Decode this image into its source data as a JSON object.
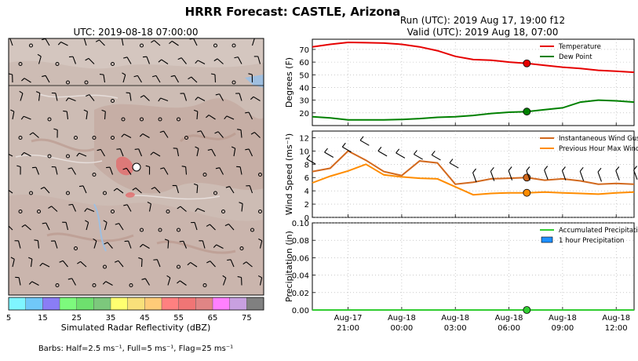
{
  "title": "HRRR Forecast: CASTLE, Arizona",
  "map": {
    "title": "UTC: 2019-08-18 07:00:00",
    "colorbar": {
      "label": "Simulated Radar Reflectivity (dBZ)",
      "ticks": [
        "5",
        "15",
        "25",
        "35",
        "45",
        "55",
        "65",
        "75"
      ],
      "colors": [
        "#7ff5ff",
        "#70c8f8",
        "#8a7df5",
        "#7dfa7d",
        "#6ee06e",
        "#7cc87c",
        "#ffff70",
        "#f8e07a",
        "#ffcb78",
        "#ff8080",
        "#f07575",
        "#e08585",
        "#ff80ff",
        "#c8a0e0",
        "#808080"
      ]
    },
    "barbs_note": "Barbs: Half=2.5 ms⁻¹, Full=5 ms⁻¹, Flag=25 ms⁻¹"
  },
  "run_text": "Run (UTC): 2019 Aug 17, 19:00 f12",
  "valid_text": "Valid (UTC): 2019 Aug 18, 07:00",
  "chart_data": [
    {
      "type": "line",
      "x": [
        "2019-08-17 19:00",
        "2019-08-17 20:00",
        "2019-08-17 21:00",
        "2019-08-17 22:00",
        "2019-08-17 23:00",
        "2019-08-18 00:00",
        "2019-08-18 01:00",
        "2019-08-18 02:00",
        "2019-08-18 03:00",
        "2019-08-18 04:00",
        "2019-08-18 05:00",
        "2019-08-18 06:00",
        "2019-08-18 07:00",
        "2019-08-18 08:00",
        "2019-08-18 09:00",
        "2019-08-18 10:00",
        "2019-08-18 11:00",
        "2019-08-18 12:00",
        "2019-08-18 13:00"
      ],
      "ylabel": "Degrees (F)",
      "ylim": [
        10,
        78
      ],
      "yticks": [
        "20",
        "30",
        "40",
        "50",
        "60",
        "70"
      ],
      "grid": true,
      "legend": "top-right",
      "series": [
        {
          "name": "Temperature",
          "color": "#e60000",
          "values": [
            72,
            74,
            75.5,
            75.3,
            75,
            74,
            72,
            69,
            64.5,
            62,
            61.5,
            60,
            59,
            57.5,
            56,
            55,
            53.5,
            52.8,
            52
          ]
        },
        {
          "name": "Dew Point",
          "color": "#008000",
          "values": [
            17,
            16,
            14.5,
            14.5,
            14.5,
            14.8,
            15.5,
            16.5,
            17,
            18,
            19.5,
            20.5,
            21,
            22.5,
            24,
            28.5,
            30,
            29.5,
            28.5
          ]
        }
      ],
      "marker_index": 12
    },
    {
      "type": "line",
      "x": [
        "2019-08-17 19:00",
        "2019-08-17 20:00",
        "2019-08-17 21:00",
        "2019-08-17 22:00",
        "2019-08-17 23:00",
        "2019-08-18 00:00",
        "2019-08-18 01:00",
        "2019-08-18 02:00",
        "2019-08-18 03:00",
        "2019-08-18 04:00",
        "2019-08-18 05:00",
        "2019-08-18 06:00",
        "2019-08-18 07:00",
        "2019-08-18 08:00",
        "2019-08-18 09:00",
        "2019-08-18 10:00",
        "2019-08-18 11:00",
        "2019-08-18 12:00",
        "2019-08-18 13:00"
      ],
      "ylabel": "Wind Speed (ms⁻¹)",
      "ylim": [
        0,
        13
      ],
      "yticks": [
        "0",
        "2",
        "4",
        "6",
        "8",
        "10",
        "12"
      ],
      "grid": true,
      "legend": "top-right",
      "series": [
        {
          "name": "Instantaneous Wind Gust",
          "color": "#d2691e",
          "values": [
            6.9,
            7.4,
            10,
            8.6,
            6.9,
            6.3,
            8.5,
            8.2,
            5,
            5.3,
            5.8,
            5.9,
            6,
            5.6,
            5.8,
            5.5,
            5,
            5.1,
            5
          ]
        },
        {
          "name": "Previous Hour Max Wind",
          "color": "#ff8c00",
          "values": [
            5.2,
            6.2,
            7,
            8,
            6.4,
            6.1,
            5.9,
            5.8,
            4.6,
            3.4,
            3.6,
            3.7,
            3.7,
            3.8,
            3.7,
            3.6,
            3.5,
            3.7,
            3.8
          ]
        }
      ],
      "marker_index": 12
    },
    {
      "type": "line",
      "x": [
        "2019-08-17 19:00",
        "2019-08-17 20:00",
        "2019-08-17 21:00",
        "2019-08-17 22:00",
        "2019-08-17 23:00",
        "2019-08-18 00:00",
        "2019-08-18 01:00",
        "2019-08-18 02:00",
        "2019-08-18 03:00",
        "2019-08-18 04:00",
        "2019-08-18 05:00",
        "2019-08-18 06:00",
        "2019-08-18 07:00",
        "2019-08-18 08:00",
        "2019-08-18 09:00",
        "2019-08-18 10:00",
        "2019-08-18 11:00",
        "2019-08-18 12:00",
        "2019-08-18 13:00"
      ],
      "ylabel": "Precipitation (in)",
      "ylim": [
        0,
        0.1
      ],
      "yticks": [
        "0.00",
        "0.02",
        "0.04",
        "0.06",
        "0.08",
        "0.10"
      ],
      "xticks": [
        {
          "x": "2019-08-17 21:00",
          "day": "Aug-17",
          "time": "21:00"
        },
        {
          "x": "2019-08-18 00:00",
          "day": "Aug-18",
          "time": "00:00"
        },
        {
          "x": "2019-08-18 03:00",
          "day": "Aug-18",
          "time": "03:00"
        },
        {
          "x": "2019-08-18 06:00",
          "day": "Aug-18",
          "time": "06:00"
        },
        {
          "x": "2019-08-18 09:00",
          "day": "Aug-18",
          "time": "09:00"
        },
        {
          "x": "2019-08-18 12:00",
          "day": "Aug-18",
          "time": "12:00"
        }
      ],
      "grid": true,
      "legend": "top-right",
      "series": [
        {
          "name": "Accumulated Precipitation",
          "color": "#32cd32",
          "values": [
            0,
            0,
            0,
            0,
            0,
            0,
            0,
            0,
            0,
            0,
            0,
            0,
            0,
            0,
            0,
            0,
            0,
            0,
            0
          ]
        }
      ],
      "bars": {
        "name": "1 hour Precipitation",
        "color": "#1e90ff",
        "values": [
          0,
          0,
          0,
          0,
          0,
          0,
          0,
          0,
          0,
          0,
          0,
          0,
          0,
          0,
          0,
          0,
          0,
          0,
          0
        ]
      },
      "marker_index": 12
    }
  ]
}
